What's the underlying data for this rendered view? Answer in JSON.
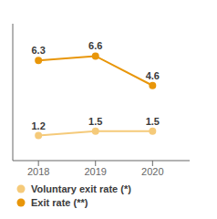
{
  "chart_data": {
    "type": "line",
    "x": [
      2018,
      2019,
      2020
    ],
    "series": [
      {
        "name": "Exit rate (**)",
        "color": "#E8960A",
        "values": [
          6.3,
          6.6,
          4.6
        ],
        "marker": "circle"
      },
      {
        "name": "Voluntary exit rate (*)",
        "color": "#F5CA7A",
        "values": [
          1.2,
          1.5,
          1.5
        ],
        "marker": "circle"
      }
    ],
    "xlim": [
      2017.55,
      2020.65
    ],
    "xticks": [
      2018,
      2019,
      2020
    ],
    "ylim": [
      -0.5,
      8.8
    ],
    "tick_labels": "x",
    "data_labels": true,
    "grid": false,
    "legend": "bottom"
  }
}
